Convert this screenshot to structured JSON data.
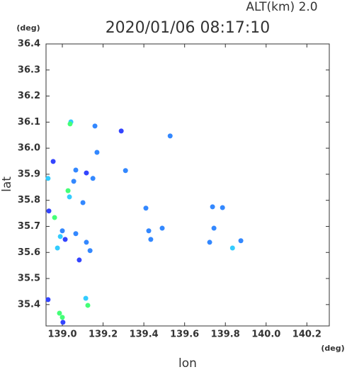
{
  "chart_data": {
    "type": "scatter",
    "header": "ALT(km)  2.0",
    "title": "2020/01/06 08:17:10",
    "y_unit": "(deg)",
    "x_unit": "(deg)",
    "y_label": "lat",
    "x_label": "lon",
    "xlim": [
      138.92,
      140.31
    ],
    "ylim": [
      35.318,
      36.4
    ],
    "xticks": [
      {
        "value": 139,
        "label": "139.0"
      },
      {
        "value": 139.2,
        "label": "139.2"
      },
      {
        "value": 139.4,
        "label": "139.4"
      },
      {
        "value": 139.6,
        "label": "139.6"
      },
      {
        "value": 139.8,
        "label": "139.8"
      },
      {
        "value": 140,
        "label": "140.0"
      },
      {
        "value": 140.2,
        "label": "140.2"
      }
    ],
    "yticks": [
      36.4,
      36.3,
      36.2,
      36.1,
      {
        "value": 36,
        "label": "36.0"
      },
      35.9,
      35.8,
      35.7,
      35.6,
      35.5,
      35.4
    ],
    "x": [
      139.042,
      139.038,
      139.16,
      139.289,
      139.529,
      139.17,
      138.955,
      139.066,
      139.118,
      139.15,
      139.31,
      138.93,
      139.056,
      139.028,
      139.035,
      139.101,
      138.934,
      138.962,
      139.41,
      139.737,
      139.786,
      139.0,
      138.99,
      139.014,
      139.066,
      139.118,
      139.424,
      139.49,
      139.744,
      139.723,
      138.976,
      139.083,
      139.136,
      139.434,
      139.835,
      139.876,
      139.115,
      139.125,
      138.986,
      139.0,
      139.003,
      138.93
    ],
    "values": [
      36.101,
      36.093,
      36.085,
      36.066,
      36.047,
      35.984,
      35.949,
      35.916,
      35.905,
      35.884,
      35.914,
      35.884,
      35.873,
      35.837,
      35.813,
      35.791,
      35.759,
      35.734,
      35.77,
      35.775,
      35.772,
      35.683,
      35.661,
      35.65,
      35.672,
      35.639,
      35.683,
      35.693,
      35.693,
      35.639,
      35.617,
      35.571,
      35.607,
      35.65,
      35.617,
      35.645,
      35.424,
      35.397,
      35.367,
      35.351,
      35.332,
      35.419
    ],
    "colors": [
      "#33ccff",
      "#44ff77",
      "#3388ff",
      "#3344ff",
      "#3388ff",
      "#3388ff",
      "#3344ff",
      "#3388ff",
      "#3344ff",
      "#3388ff",
      "#3388ff",
      "#33ccff",
      "#3388ff",
      "#44ff77",
      "#33ccff",
      "#3388ff",
      "#3344ff",
      "#44ff77",
      "#3388ff",
      "#3388ff",
      "#3388ff",
      "#3388ff",
      "#33ccff",
      "#3344ff",
      "#3388ff",
      "#3388ff",
      "#3388ff",
      "#3388ff",
      "#3388ff",
      "#3388ff",
      "#33ccff",
      "#3344ff",
      "#3388ff",
      "#3388ff",
      "#33ccff",
      "#3388ff",
      "#33ccff",
      "#44ff77",
      "#44ff77",
      "#44ff77",
      "#3344ff",
      "#3344ff"
    ]
  }
}
